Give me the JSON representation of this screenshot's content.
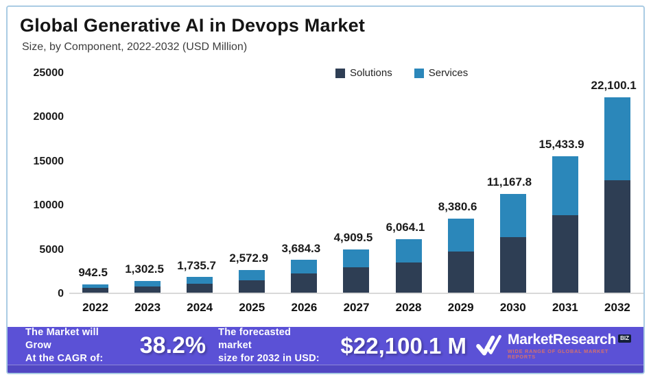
{
  "header": {
    "title": "Global Generative AI in Devops Market",
    "subtitle": "Size, by Component, 2022-2032 (USD Million)"
  },
  "legend": [
    {
      "label": "Solutions",
      "color": "#2e3e54"
    },
    {
      "label": "Services",
      "color": "#2b87ba"
    }
  ],
  "chart_data": {
    "type": "bar",
    "stacked": true,
    "title": "Global Generative AI in Devops Market",
    "subtitle": "Size, by Component, 2022-2032 (USD Million)",
    "xlabel": "",
    "ylabel": "USD Million",
    "ylim": [
      0,
      25000
    ],
    "yticks": [
      25000,
      20000,
      15000,
      10000,
      5000,
      0
    ],
    "grid": false,
    "legend_position": "top-right",
    "categories": [
      "2022",
      "2023",
      "2024",
      "2025",
      "2026",
      "2027",
      "2028",
      "2029",
      "2030",
      "2031",
      "2032"
    ],
    "totals": [
      942.5,
      1302.5,
      1735.7,
      2572.9,
      3684.3,
      4909.5,
      6064.1,
      8380.6,
      11167.8,
      15433.9,
      22100.1
    ],
    "total_labels": [
      "942.5",
      "1,302.5",
      "1,735.7",
      "2,572.9",
      "3,684.3",
      "4,909.5",
      "6,064.1",
      "8,380.6",
      "11,167.8",
      "15,433.9",
      "22,100.1"
    ],
    "series": [
      {
        "name": "Solutions",
        "color": "#2e3e54",
        "values": [
          530,
          720,
          985,
          1390,
          2160,
          2860,
          3430,
          4670,
          6290,
          8780,
          12700
        ]
      },
      {
        "name": "Services",
        "color": "#2b87ba",
        "values": [
          412.5,
          582.5,
          750.7,
          1182.9,
          1524.3,
          2049.5,
          2634.1,
          3710.6,
          4877.8,
          6653.9,
          9400.1
        ]
      }
    ]
  },
  "footer": {
    "cagr_label_line1": "The Market will Grow",
    "cagr_label_line2": "At the CAGR of:",
    "cagr_value": "38.2%",
    "forecast_label_line1": "The forecasted market",
    "forecast_label_line2": "size for 2032 in USD:",
    "forecast_value": "$22,100.1 M",
    "brand": {
      "name": "MarketResearch",
      "suffix": "BIZ",
      "tagline": "WIDE RANGE OF GLOBAL MARKET REPORTS"
    }
  }
}
